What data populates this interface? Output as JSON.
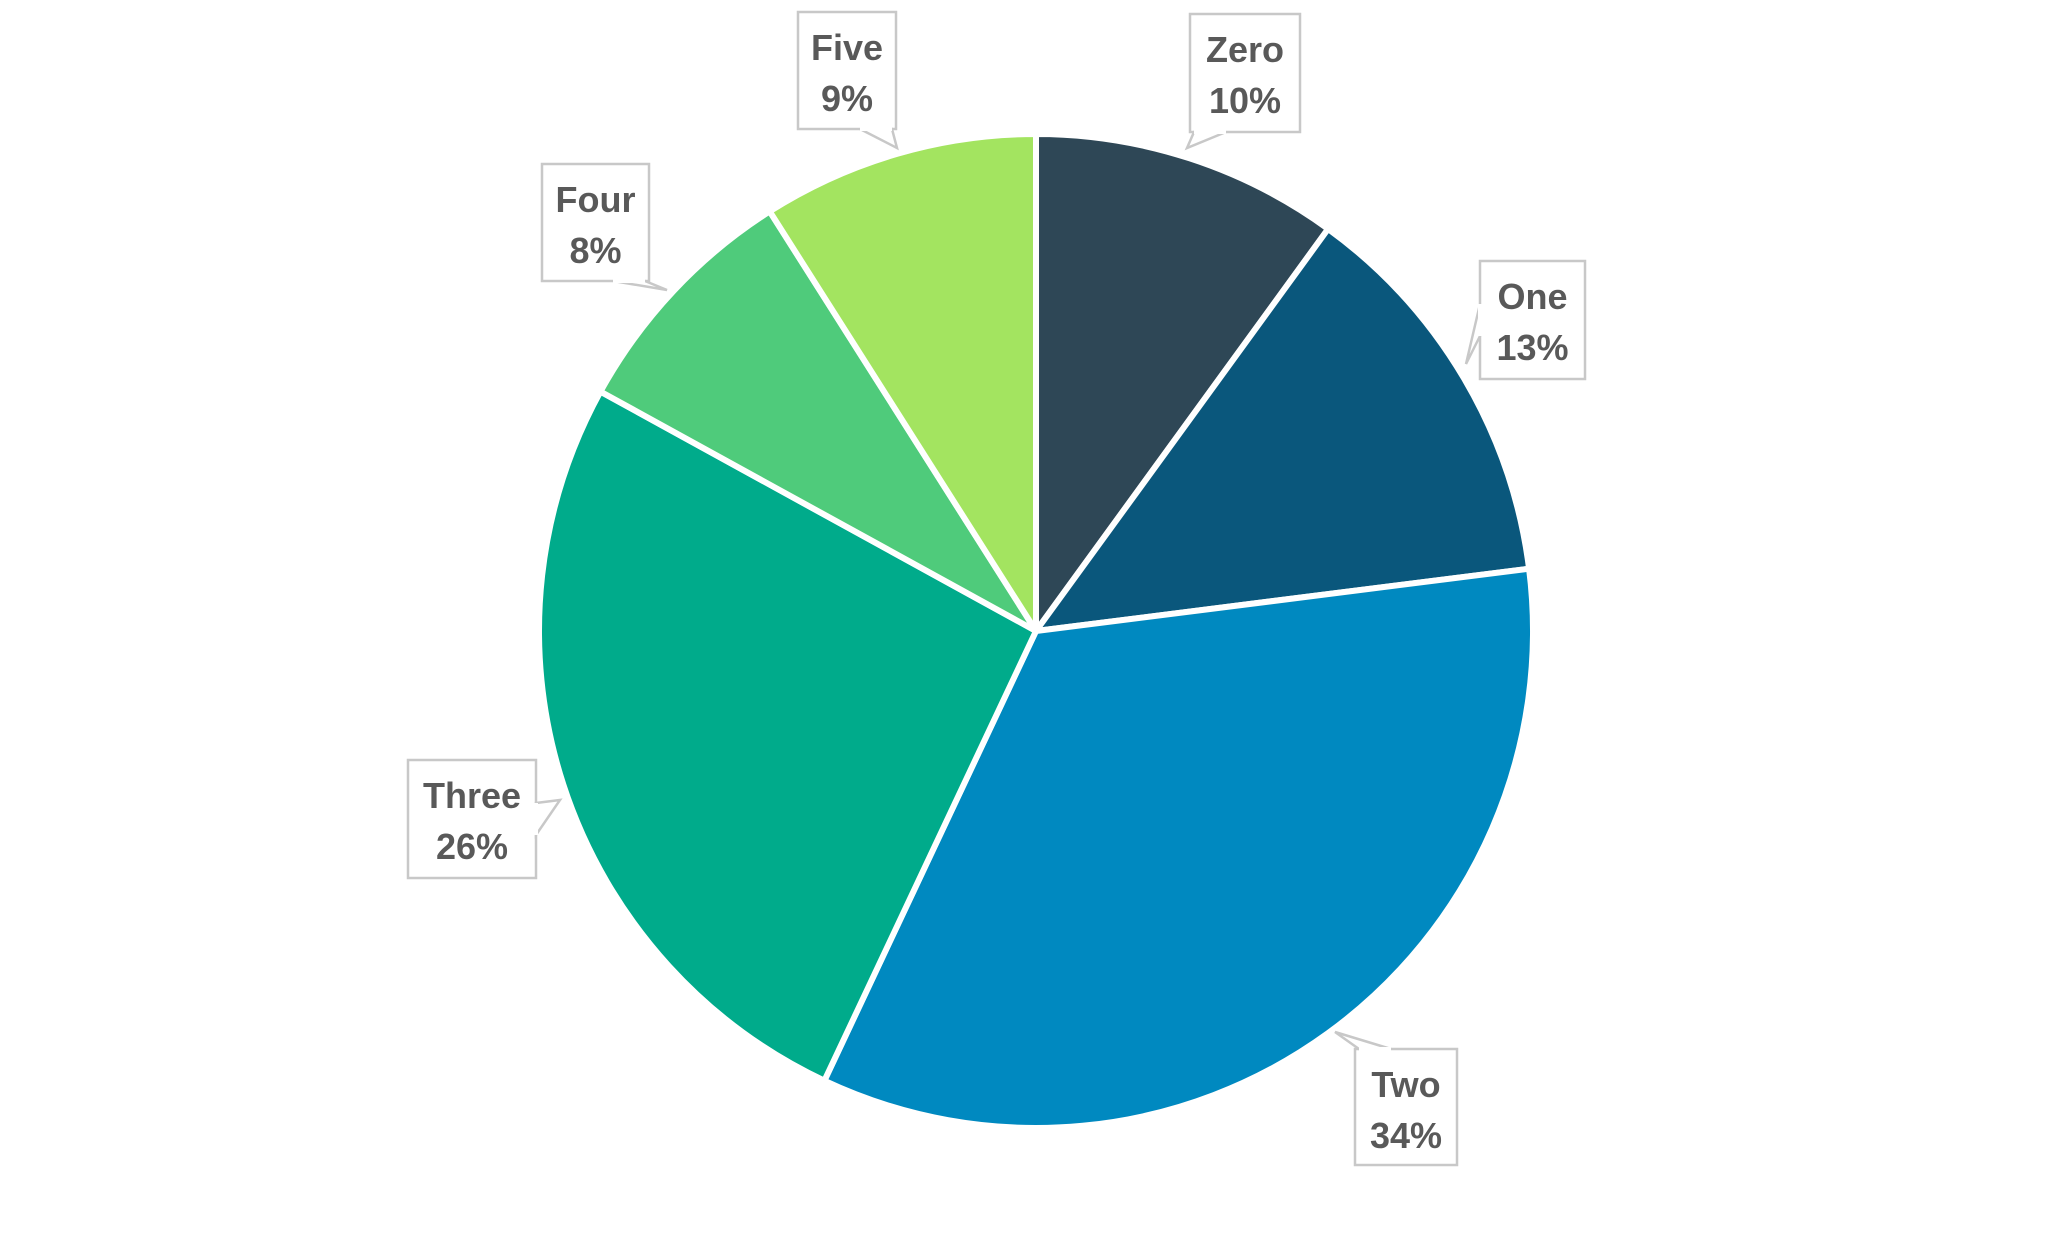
{
  "chart_data": {
    "type": "pie",
    "start_angle_deg": 0,
    "direction": "clockwise",
    "legend": "none",
    "slices": [
      {
        "label": "Zero",
        "value": 10,
        "value_label": "10%",
        "color": "#2E4756"
      },
      {
        "label": "One",
        "value": 13,
        "value_label": "13%",
        "color": "#0A577C"
      },
      {
        "label": "Two",
        "value": 34,
        "value_label": "34%",
        "color": "#0089C0"
      },
      {
        "label": "Three",
        "value": 26,
        "value_label": "26%",
        "color": "#00AB8B"
      },
      {
        "label": "Four",
        "value": 8,
        "value_label": "8%",
        "color": "#4FCB7B"
      },
      {
        "label": "Five",
        "value": 9,
        "value_label": "9%",
        "color": "#A3E460"
      }
    ]
  }
}
